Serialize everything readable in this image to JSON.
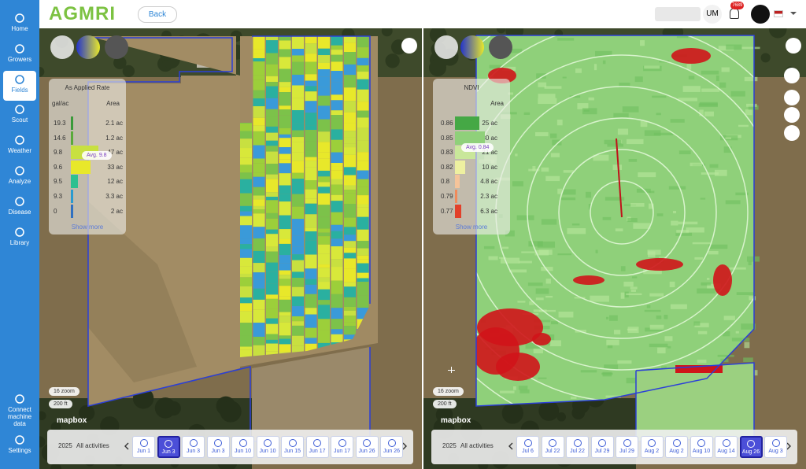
{
  "header": {
    "logo": "AGMRI",
    "back": "Back",
    "user": "UM",
    "notifications": "7689"
  },
  "sidebar": {
    "items": [
      "Home",
      "Growers",
      "Fields",
      "Scout",
      "Weather",
      "Analyze",
      "Disease",
      "Library"
    ],
    "active": 2,
    "bottom_items": [
      "Connect machine data",
      "Settings"
    ]
  },
  "maps": [
    {
      "legend": {
        "title": "As Applied Rate",
        "unit": "gal/ac",
        "area_header": "Area",
        "rows": [
          [
            "19.3",
            "2.1 ac"
          ],
          [
            "14.6",
            "1.2 ac"
          ],
          [
            "9.8",
            "47 ac"
          ],
          [
            "9.6",
            "33 ac"
          ],
          [
            "9.5",
            "12 ac"
          ],
          [
            "9.3",
            "3.3 ac"
          ],
          [
            "0",
            "2 ac"
          ]
        ],
        "average": "Avg. 9.8",
        "show_more": "Show more"
      },
      "zoom": "16 zoom",
      "scale": "200 ft",
      "attribution": "mapbox",
      "timeline": {
        "year": "2025",
        "filter": "All activities",
        "dates": [
          "Jun 1",
          "Jun 3",
          "Jun 3",
          "Jun 3",
          "Jun 10",
          "Jun 10",
          "Jun 15",
          "Jun 17",
          "Jun 17",
          "Jun 26",
          "Jun 26"
        ],
        "selected": 1
      }
    },
    {
      "legend": {
        "title": "NDVI",
        "area_header": "Area",
        "rows": [
          [
            "0.86",
            "25 ac"
          ],
          [
            "0.85",
            "30 ac"
          ],
          [
            "0.83",
            "21 ac"
          ],
          [
            "0.82",
            "10 ac"
          ],
          [
            "0.8",
            "4.8 ac"
          ],
          [
            "0.79",
            "2.3 ac"
          ],
          [
            "0.77",
            "6.3 ac"
          ]
        ],
        "average": "Avg. 0.84",
        "show_more": "Show more"
      },
      "zoom": "16 zoom",
      "scale": "200 ft",
      "attribution": "mapbox",
      "timeline": {
        "year": "2025",
        "filter": "All activities",
        "dates": [
          "Jul 6",
          "Jul 22",
          "Jul 22",
          "Jul 29",
          "Jul 29",
          "Aug 2",
          "Aug 2",
          "Aug 10",
          "Aug 14",
          "Aug 26",
          "Aug 3"
        ],
        "selected": 9
      }
    }
  ]
}
